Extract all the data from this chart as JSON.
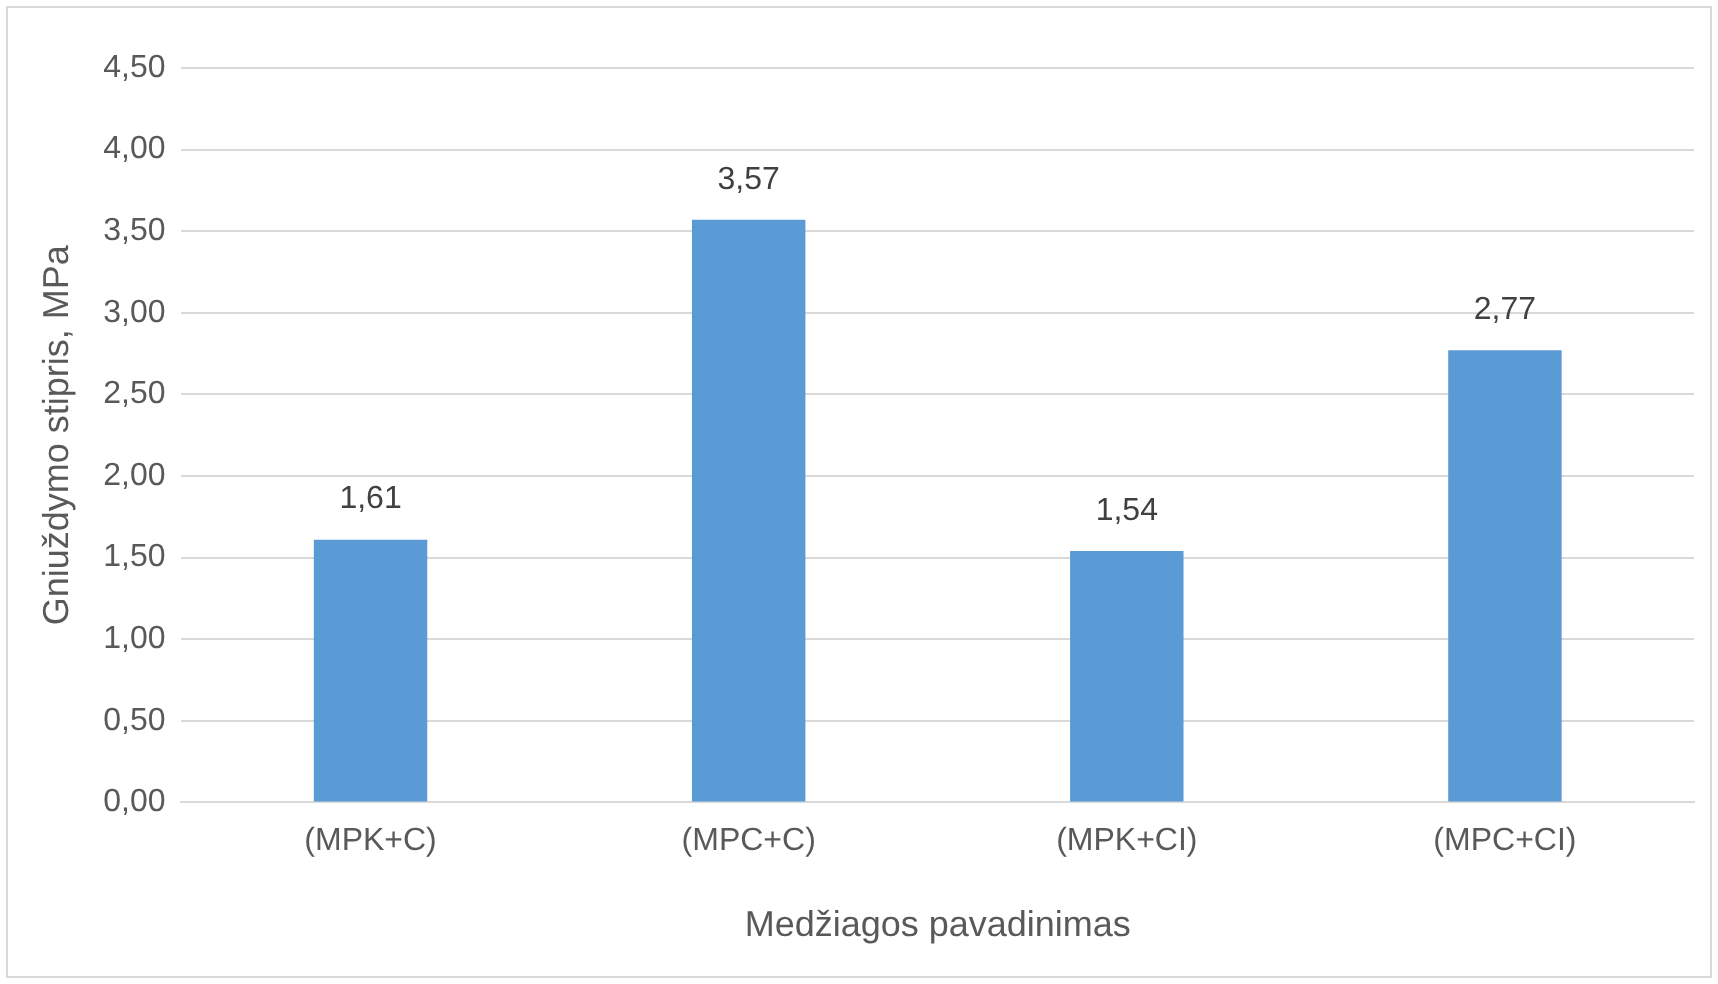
{
  "chart_data": {
    "type": "bar",
    "xlabel": "Medžiagos pavadinimas",
    "ylabel": "Gniuždymo stipris, MPa",
    "categories": [
      "(MPK+C)",
      "(MPC+C)",
      "(MPK+CI)",
      "(MPC+CI)"
    ],
    "values": [
      1.61,
      3.57,
      1.54,
      2.77
    ],
    "color": "#5b9bd5",
    "value_labels": [
      "1,61",
      "3,57",
      "1,54",
      "2,77"
    ],
    "ylim": [
      0,
      4.5
    ],
    "yticks": [
      {
        "value": 0,
        "label": "0,00"
      },
      {
        "value": 0.5,
        "label": "0,50"
      },
      {
        "value": 1,
        "label": "1,00"
      },
      {
        "value": 1.5,
        "label": "1,50"
      },
      {
        "value": 2,
        "label": "2,00"
      },
      {
        "value": 2.5,
        "label": "2,50"
      },
      {
        "value": 3,
        "label": "3,00"
      },
      {
        "value": 3.5,
        "label": "3,50"
      },
      {
        "value": 4,
        "label": "4,00"
      },
      {
        "value": 4.5,
        "label": "4,50"
      }
    ],
    "grid": "y",
    "legend": false
  }
}
